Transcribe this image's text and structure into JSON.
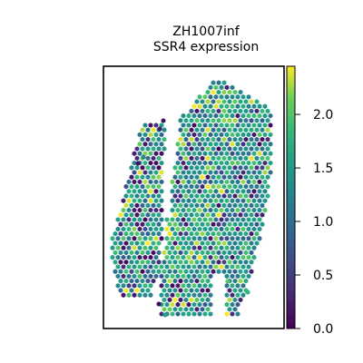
{
  "chart_data": {
    "type": "scatter",
    "title_line1": "ZH1007inf",
    "title_line2": "SSR4 expression",
    "colorbar": {
      "colormap": "viridis",
      "range": [
        0,
        2.45
      ],
      "ticks": [
        0.0,
        0.5,
        1.0,
        1.5,
        2.0
      ],
      "tick_labels": [
        "0.0",
        "0.5",
        "1.0",
        "1.5",
        "2.0"
      ]
    },
    "marker": "hexagon",
    "axes_visible_ticks": false,
    "grid": false,
    "seed": 1007
  }
}
